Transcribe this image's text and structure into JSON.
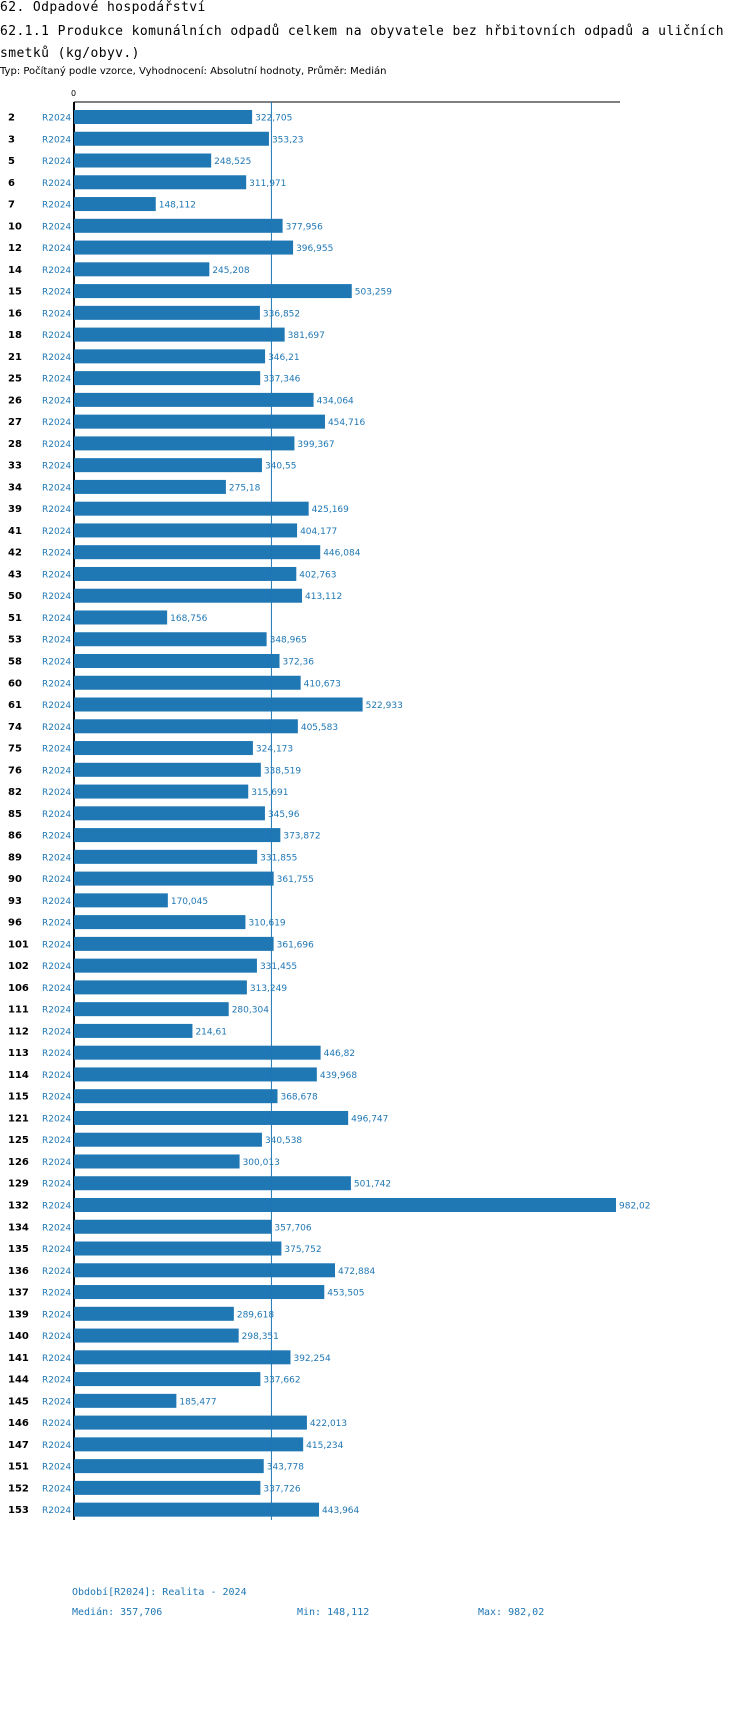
{
  "header": {
    "section": "62. Odpadové hospodářství",
    "indicator": "62.1.1 Produkce komunálních odpadů celkem na obyvatele bez hřbitovních odpadů a uličních smetků (kg/obyv.)",
    "type_line": "Typ: Počítaný podle vzorce, Vyhodnocení: Absolutní hodnoty, Průměr: Medián"
  },
  "colors": {
    "bar": "#1f77b4",
    "median_line": "#1f77b4",
    "axis": "#000000",
    "value_label": "#1f77b4",
    "period_label": "#1f77b4"
  },
  "chart_data": {
    "type": "bar",
    "orientation": "horizontal",
    "title": "62.1.1 Produkce komunálních odpadů celkem na obyvatele bez hřbitovních odpadů a uličních smetků (kg/obyv.)",
    "axis_zero_label": "0",
    "xlim": [
      0,
      982.02
    ],
    "median": 357.706,
    "categories": [
      "2",
      "3",
      "5",
      "6",
      "7",
      "10",
      "12",
      "14",
      "15",
      "16",
      "18",
      "21",
      "25",
      "26",
      "27",
      "28",
      "33",
      "34",
      "39",
      "41",
      "42",
      "43",
      "50",
      "51",
      "53",
      "58",
      "60",
      "61",
      "74",
      "75",
      "76",
      "82",
      "85",
      "86",
      "89",
      "90",
      "93",
      "96",
      "101",
      "102",
      "106",
      "111",
      "112",
      "113",
      "114",
      "115",
      "121",
      "125",
      "126",
      "129",
      "132",
      "134",
      "135",
      "136",
      "137",
      "139",
      "140",
      "141",
      "144",
      "145",
      "146",
      "147",
      "151",
      "152",
      "153"
    ],
    "period": "R2024",
    "values": [
      322.705,
      353.23,
      248.525,
      311.971,
      148.112,
      377.956,
      396.955,
      245.208,
      503.259,
      336.852,
      381.697,
      346.21,
      337.346,
      434.064,
      454.716,
      399.367,
      340.55,
      275.18,
      425.169,
      404.177,
      446.084,
      402.763,
      413.112,
      168.756,
      348.965,
      372.36,
      410.673,
      522.933,
      405.583,
      324.173,
      338.519,
      315.691,
      345.96,
      373.872,
      331.855,
      361.755,
      170.045,
      310.619,
      361.696,
      331.455,
      313.249,
      280.304,
      214.61,
      446.82,
      439.968,
      368.678,
      496.747,
      340.538,
      300.013,
      501.742,
      982.02,
      357.706,
      375.752,
      472.884,
      453.505,
      289.618,
      298.351,
      392.254,
      337.662,
      185.477,
      422.013,
      415.234,
      343.778,
      337.726,
      443.964
    ],
    "value_labels": [
      "322,705",
      "353,23",
      "248,525",
      "311,971",
      "148,112",
      "377,956",
      "396,955",
      "245,208",
      "503,259",
      "336,852",
      "381,697",
      "346,21",
      "337,346",
      "434,064",
      "454,716",
      "399,367",
      "340,55",
      "275,18",
      "425,169",
      "404,177",
      "446,084",
      "402,763",
      "413,112",
      "168,756",
      "348,965",
      "372,36",
      "410,673",
      "522,933",
      "405,583",
      "324,173",
      "338,519",
      "315,691",
      "345,96",
      "373,872",
      "331,855",
      "361,755",
      "170,045",
      "310,619",
      "361,696",
      "331,455",
      "313,249",
      "280,304",
      "214,61",
      "446,82",
      "439,968",
      "368,678",
      "496,747",
      "340,538",
      "300,013",
      "501,742",
      "982,02",
      "357,706",
      "375,752",
      "472,884",
      "453,505",
      "289,618",
      "298,351",
      "392,254",
      "337,662",
      "185,477",
      "422,013",
      "415,234",
      "343,778",
      "337,726",
      "443,964"
    ]
  },
  "footer": {
    "period": "Období[R2024]: Realita - 2024",
    "median": "Medián: 357,706",
    "min": "Min: 148,112",
    "max": "Max: 982,02"
  }
}
